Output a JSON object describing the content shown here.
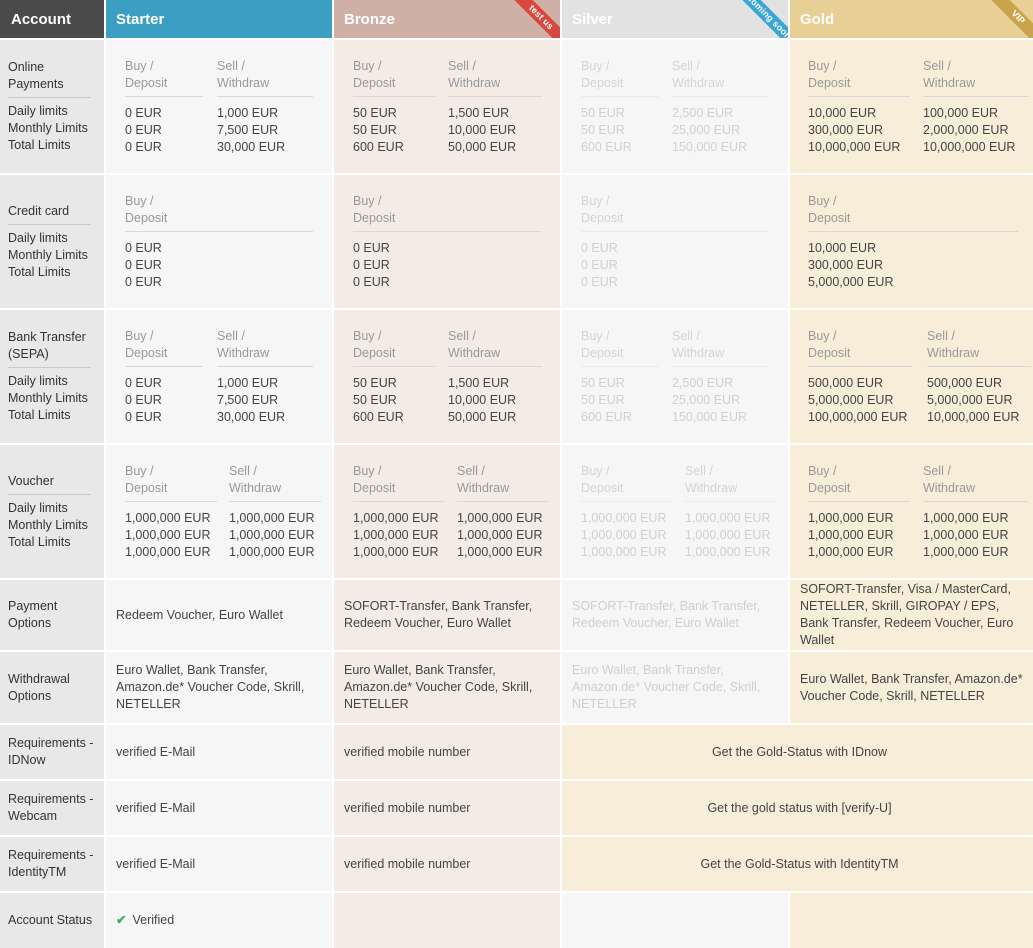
{
  "header": {
    "account": "Account",
    "starter": "Starter",
    "bronze": "Bronze",
    "silver": "Silver",
    "gold": "Gold",
    "ribbon_bronze": "test us",
    "ribbon_silver": "coming soon",
    "ribbon_gold": "VIP"
  },
  "labels": {
    "buy": "Buy /",
    "deposit": "Deposit",
    "sell": "Sell /",
    "withdraw": "Withdraw",
    "daily": "Daily limits",
    "monthly": "Monthly Limits",
    "total": "Total Limits"
  },
  "rows": {
    "online": "Online Payments",
    "credit": "Credit card",
    "bank": "Bank Transfer (SEPA)",
    "voucher": "Voucher",
    "payment_options": "Payment Options",
    "withdrawal_options": "Withdrawal Options",
    "req_idnow": "Requirements - IDNow",
    "req_webcam": "Requirements - Webcam",
    "req_identity": "Requirements - IdentityTM",
    "status": "Account Status"
  },
  "online": {
    "starter": {
      "buy": [
        "0 EUR",
        "0 EUR",
        "0 EUR"
      ],
      "sell": [
        "1,000 EUR",
        "7,500 EUR",
        "30,000 EUR"
      ]
    },
    "bronze": {
      "buy": [
        "50 EUR",
        "50 EUR",
        "600 EUR"
      ],
      "sell": [
        "1,500 EUR",
        "10,000 EUR",
        "50,000 EUR"
      ]
    },
    "silver": {
      "buy": [
        "50 EUR",
        "50 EUR",
        "600 EUR"
      ],
      "sell": [
        "2,500 EUR",
        "25,000 EUR",
        "150,000 EUR"
      ]
    },
    "gold": {
      "buy": [
        "10,000 EUR",
        "300,000 EUR",
        "10,000,000 EUR"
      ],
      "sell": [
        "100,000 EUR",
        "2,000,000 EUR",
        "10,000,000 EUR"
      ]
    }
  },
  "credit": {
    "starter": {
      "buy": [
        "0 EUR",
        "0 EUR",
        "0 EUR"
      ]
    },
    "bronze": {
      "buy": [
        "0 EUR",
        "0 EUR",
        "0 EUR"
      ]
    },
    "silver": {
      "buy": [
        "0 EUR",
        "0 EUR",
        "0 EUR"
      ]
    },
    "gold": {
      "buy": [
        "10,000 EUR",
        "300,000 EUR",
        "5,000,000 EUR"
      ]
    }
  },
  "bank": {
    "starter": {
      "buy": [
        "0 EUR",
        "0 EUR",
        "0 EUR"
      ],
      "sell": [
        "1,000 EUR",
        "7,500 EUR",
        "30,000 EUR"
      ]
    },
    "bronze": {
      "buy": [
        "50 EUR",
        "50 EUR",
        "600 EUR"
      ],
      "sell": [
        "1,500 EUR",
        "10,000 EUR",
        "50,000 EUR"
      ]
    },
    "silver": {
      "buy": [
        "50 EUR",
        "50 EUR",
        "600 EUR"
      ],
      "sell": [
        "2,500 EUR",
        "25,000 EUR",
        "150,000 EUR"
      ]
    },
    "gold": {
      "buy": [
        "500,000 EUR",
        "5,000,000 EUR",
        "100,000,000 EUR"
      ],
      "sell": [
        "500,000 EUR",
        "5,000,000 EUR",
        "10,000,000 EUR"
      ]
    }
  },
  "voucher": {
    "starter": {
      "buy": [
        "1,000,000 EUR",
        "1,000,000 EUR",
        "1,000,000 EUR"
      ],
      "sell": [
        "1,000,000 EUR",
        "1,000,000 EUR",
        "1,000,000 EUR"
      ]
    },
    "bronze": {
      "buy": [
        "1,000,000 EUR",
        "1,000,000 EUR",
        "1,000,000 EUR"
      ],
      "sell": [
        "1,000,000 EUR",
        "1,000,000 EUR",
        "1,000,000 EUR"
      ]
    },
    "silver": {
      "buy": [
        "1,000,000 EUR",
        "1,000,000 EUR",
        "1,000,000 EUR"
      ],
      "sell": [
        "1,000,000 EUR",
        "1,000,000 EUR",
        "1,000,000 EUR"
      ]
    },
    "gold": {
      "buy": [
        "1,000,000 EUR",
        "1,000,000 EUR",
        "1,000,000 EUR"
      ],
      "sell": [
        "1,000,000 EUR",
        "1,000,000 EUR",
        "1,000,000 EUR"
      ]
    }
  },
  "payment_options": {
    "starter": "Redeem Voucher, Euro Wallet",
    "bronze": "SOFORT-Transfer, Bank Transfer, Redeem Voucher, Euro Wallet",
    "silver": "SOFORT-Transfer, Bank Transfer, Redeem Voucher, Euro Wallet",
    "gold": "SOFORT-Transfer, Visa / MasterCard, NETELLER, Skrill, GIROPAY / EPS, Bank Transfer, Redeem Voucher, Euro Wallet"
  },
  "withdrawal_options": {
    "starter": "Euro Wallet, Bank Transfer, Amazon.de* Voucher Code, Skrill, NETELLER",
    "bronze": "Euro Wallet, Bank Transfer, Amazon.de* Voucher Code, Skrill, NETELLER",
    "silver": "Euro Wallet, Bank Transfer, Amazon.de* Voucher Code, Skrill, NETELLER",
    "gold": "Euro Wallet, Bank Transfer, Amazon.de* Voucher Code, Skrill, NETELLER"
  },
  "requirements": {
    "idnow": {
      "starter": "verified E-Mail",
      "bronze": "verified mobile number",
      "gold": "Get the Gold-Status with IDnow"
    },
    "webcam": {
      "starter": "verified E-Mail",
      "bronze": "verified mobile number",
      "gold": "Get the gold status with [verify-U]"
    },
    "identity": {
      "starter": "verified E-Mail",
      "bronze": "verified mobile number",
      "gold": "Get the Gold-Status with IdentityTM"
    }
  },
  "status": {
    "starter": "Verified",
    "check_icon": "check-icon"
  }
}
